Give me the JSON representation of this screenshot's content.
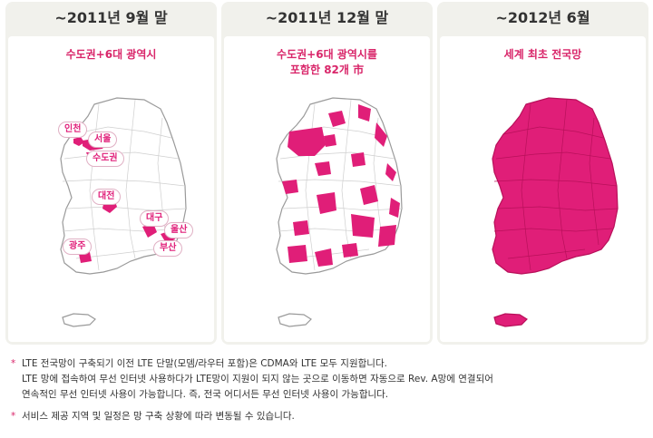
{
  "panels": [
    {
      "title": "~2011년 9월 말",
      "subtitle": [
        "수도권+6대 광역시"
      ]
    },
    {
      "title": "~2011년 12월 말",
      "subtitle": [
        "수도권+6대 광역시를",
        "포함한 82개 市"
      ]
    },
    {
      "title": "~2012년 6월",
      "subtitle": [
        "세계 최초 전국망"
      ]
    }
  ],
  "city_labels": [
    "인천",
    "서울",
    "수도권",
    "대전",
    "대구",
    "울산",
    "광주",
    "부산"
  ],
  "notes": [
    {
      "marker": "*",
      "lines": [
        "LTE 전국망이 구축되기 이전 LTE 단말(모뎀/라우터 포함)은 CDMA와 LTE 모두 지원합니다.",
        "LTE 망에 접속하여 무선 인터넷 사용하다가 LTE망이 지원이 되지 않는 곳으로 이동하면 자동으로  Rev. A망에 연결되어",
        "연속적인 무선 인터넷 사용이 가능합니다. 즉, 전국 어디서든 무선 인터넷 사용이 가능합니다."
      ]
    },
    {
      "marker": "*",
      "lines": [
        "서비스 제공 지역 및 일정은 망 구축 상황에 따라 변동될 수 있습니다."
      ]
    }
  ],
  "colors": {
    "coverage": "#e01e78",
    "label_text": "#e0207a",
    "subtitle": "#d9266a",
    "panel_bg": "#f1f1ec",
    "outline": "#9a9a9a"
  }
}
